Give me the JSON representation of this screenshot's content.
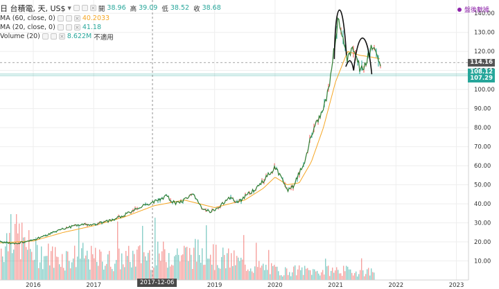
{
  "header": {
    "symbol": "日 台積電, 天, US$",
    "ohlc": [
      {
        "label": "開",
        "value": "38.96"
      },
      {
        "label": "高",
        "value": "39.09"
      },
      {
        "label": "低",
        "value": "38.52"
      },
      {
        "label": "收",
        "value": "38.68"
      }
    ],
    "feed_status": "盤後數據",
    "feed_color": "#8e24aa"
  },
  "indicators": [
    {
      "name": "MA (60, close, 0)",
      "value": "40.2033",
      "color": "#f5a623"
    },
    {
      "name": "MA (20, close, 0)",
      "value": "41.18",
      "color": "#26a69a"
    },
    {
      "name": "Volume (20)",
      "value": "8.622M",
      "extra": "不適用",
      "color": "#26a69a"
    }
  ],
  "price_tags": [
    {
      "value": "114.16",
      "color": "#555555",
      "y": 114.16
    },
    {
      "value": "108.12",
      "color": "#26a69a",
      "y": 108.12
    },
    {
      "value": "107.29",
      "color": "#26a69a",
      "y": 107.29
    }
  ],
  "cursor_date": "2017-12-06",
  "colors": {
    "up": "#26a69a",
    "down": "#ef5350",
    "ma60": "#f5a623",
    "ma20": "#26a69a",
    "pattern": "#111111"
  },
  "chart_data": {
    "type": "line",
    "title": "",
    "y_axis": {
      "ticks": [
        "10.00",
        "20.00",
        "30.00",
        "40.00",
        "50.00",
        "60.00",
        "70.00",
        "80.00",
        "90.00",
        "100.00",
        "110.00",
        "120.00",
        "130.00",
        "140.00"
      ],
      "ylim": [
        0,
        147
      ],
      "position": "right"
    },
    "x_axis": {
      "ticks": [
        "2016",
        "2017",
        "2019",
        "2020",
        "2021",
        "2022",
        "2023"
      ],
      "xlim": [
        2015.45,
        2023.2
      ]
    },
    "series": [
      {
        "x": [
          2015.45,
          2015.7,
          2016.0,
          2016.25,
          2016.5,
          2016.75,
          2017.0,
          2017.25,
          2017.5,
          2017.75,
          2018.0,
          2018.2,
          2018.35,
          2018.5,
          2018.65,
          2018.8,
          2018.95,
          2019.1,
          2019.25,
          2019.4,
          2019.55,
          2019.7,
          2019.85,
          2020.0,
          2020.1,
          2020.2,
          2020.3,
          2020.4,
          2020.5,
          2020.6,
          2020.7,
          2020.8,
          2020.9,
          2021.0,
          2021.05,
          2021.1,
          2021.2,
          2021.3,
          2021.4,
          2021.5,
          2021.6,
          2021.7,
          2021.75
        ],
        "values": [
          20,
          19,
          21,
          24,
          27,
          29,
          29,
          31,
          34,
          38,
          41,
          44,
          40,
          42,
          45,
          37,
          36,
          39,
          43,
          41,
          45,
          48,
          54,
          59,
          54,
          47,
          49,
          56,
          63,
          77,
          83,
          89,
          103,
          126,
          141,
          128,
          116,
          121,
          111,
          114,
          124,
          117,
          109
        ]
      }
    ],
    "ma60": {
      "x": [
        2015.45,
        2016.0,
        2016.5,
        2017.0,
        2017.5,
        2018.0,
        2018.5,
        2019.0,
        2019.5,
        2019.8,
        2020.0,
        2020.2,
        2020.4,
        2020.6,
        2020.8,
        2021.0,
        2021.2,
        2021.4,
        2021.6,
        2021.75
      ],
      "values": [
        19.5,
        20.5,
        25,
        28.5,
        33,
        39,
        42,
        38,
        42,
        48,
        54,
        50,
        51,
        62,
        80,
        104,
        120,
        118,
        117,
        116
      ]
    },
    "volume": {
      "x": [
        2015.45,
        2015.55,
        2015.65,
        2015.75,
        2015.85,
        2016.0,
        2016.2,
        2016.5,
        2016.8,
        2017.0,
        2017.3,
        2017.6,
        2017.9,
        2018.0,
        2018.3,
        2018.6,
        2018.9,
        2019.0,
        2019.3,
        2019.6,
        2019.9,
        2020.1,
        2020.4,
        2020.7,
        2021.0,
        2021.3,
        2021.6,
        2021.75
      ],
      "values": [
        22,
        28,
        35,
        31,
        26,
        20,
        18,
        16,
        17,
        15,
        14,
        16,
        18,
        17,
        19,
        18,
        22,
        16,
        14,
        10,
        8,
        6,
        7,
        6,
        7,
        6,
        6,
        5
      ]
    },
    "pattern": "double-top"
  }
}
